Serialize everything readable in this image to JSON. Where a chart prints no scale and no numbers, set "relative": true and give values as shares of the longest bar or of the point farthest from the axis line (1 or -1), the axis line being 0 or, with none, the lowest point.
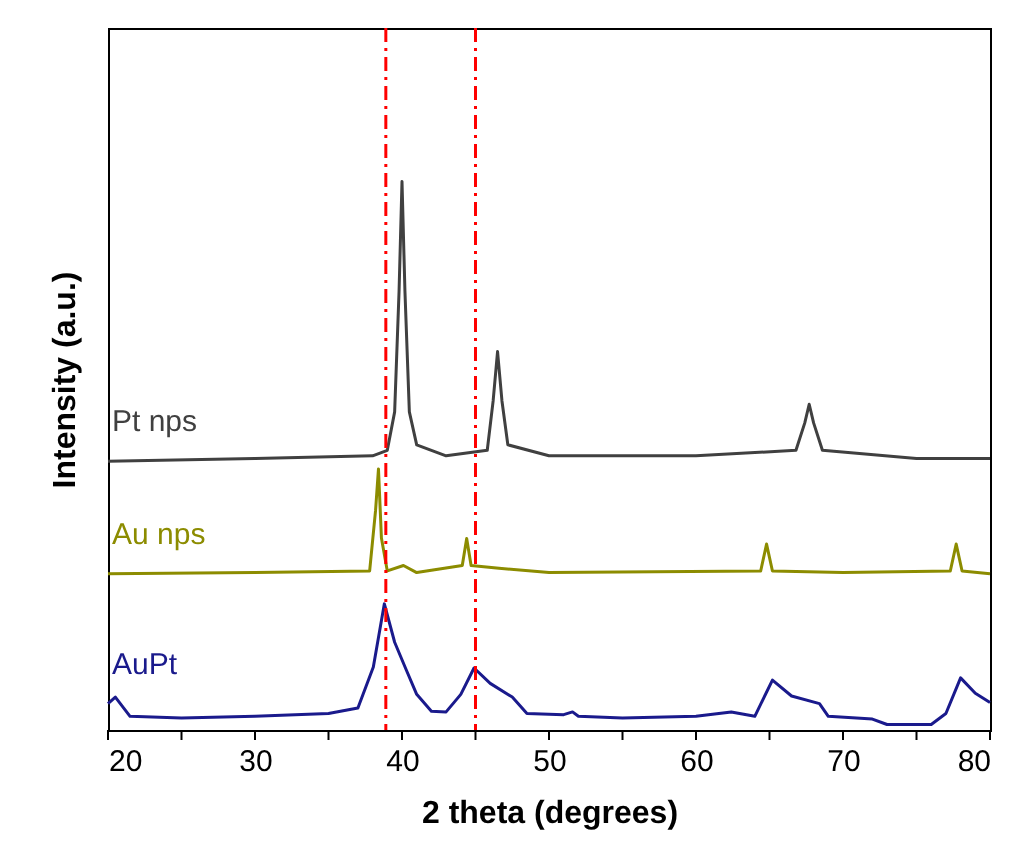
{
  "chart_data": {
    "type": "line",
    "relative": true,
    "xlabel": "2 theta (degrees)",
    "ylabel": "Intensity (a.u.)",
    "xlim": [
      20,
      80
    ],
    "xticks": [
      20,
      {
        "value": 25,
        "label": null
      },
      30,
      {
        "value": 35,
        "label": null
      },
      40,
      {
        "value": 45,
        "label": null
      },
      50,
      {
        "value": 55,
        "label": null
      },
      60,
      {
        "value": 65,
        "label": null
      },
      70,
      {
        "value": 75,
        "label": null
      },
      80
    ],
    "tick_labels": "x",
    "series": [
      {
        "name": "Pt nps",
        "color": "#404040",
        "x": [
          20,
          30,
          38,
          39,
          39.5,
          39.8,
          40.0,
          40.2,
          40.5,
          41,
          43,
          45.8,
          46.2,
          46.5,
          46.8,
          47.2,
          50,
          60,
          66.8,
          67.4,
          67.7,
          68.0,
          68.6,
          75,
          80
        ],
        "values": [
          0.49,
          0.495,
          0.5,
          0.51,
          0.58,
          0.8,
          1,
          0.8,
          0.58,
          0.52,
          0.5,
          0.51,
          0.6,
          0.69,
          0.6,
          0.52,
          0.5,
          0.5,
          0.51,
          0.56,
          0.594,
          0.56,
          0.51,
          0.495,
          0.495
        ]
      },
      {
        "name": "Au nps",
        "color": "#8c8c00",
        "x": [
          20,
          30,
          37.8,
          38.2,
          38.4,
          38.6,
          39,
          40.1,
          41,
          44.1,
          44.4,
          44.7,
          46.6,
          50,
          64.4,
          64.8,
          65.2,
          70,
          77.3,
          77.7,
          78.1,
          80
        ],
        "values": [
          0.285,
          0.287,
          0.29,
          0.4,
          0.476,
          0.35,
          0.29,
          0.3,
          0.287,
          0.3,
          0.349,
          0.3,
          0.295,
          0.287,
          0.29,
          0.339,
          0.29,
          0.287,
          0.29,
          0.339,
          0.29,
          0.285
        ]
      },
      {
        "name": "AuPt",
        "color": "#1a1a8c",
        "x": [
          20,
          20.5,
          21.5,
          25,
          30,
          35,
          37,
          38.05,
          38.8,
          39.5,
          40.3,
          41,
          42,
          43,
          44,
          44.9,
          46,
          47.5,
          48.5,
          51,
          51.6,
          52,
          55,
          60,
          62.4,
          64,
          65.2,
          66.5,
          68.4,
          69,
          72,
          73,
          76,
          77,
          78,
          79,
          80
        ],
        "values": [
          0.048,
          0.06,
          0.025,
          0.022,
          0.025,
          0.03,
          0.04,
          0.115,
          0.23,
          0.16,
          0.109,
          0.065,
          0.034,
          0.033,
          0.065,
          0.113,
          0.085,
          0.06,
          0.03,
          0.028,
          0.033,
          0.025,
          0.022,
          0.025,
          0.033,
          0.025,
          0.091,
          0.062,
          0.048,
          0.025,
          0.02,
          0.01,
          0.01,
          0.03,
          0.095,
          0.067,
          0.05
        ]
      }
    ],
    "ref_lines": [
      {
        "axis": "x",
        "value": 38.9,
        "color": "#ff0000",
        "line_style": "dashed"
      },
      {
        "axis": "x",
        "value": 45.0,
        "color": "#ff0000",
        "line_style": "dashed"
      }
    ]
  }
}
